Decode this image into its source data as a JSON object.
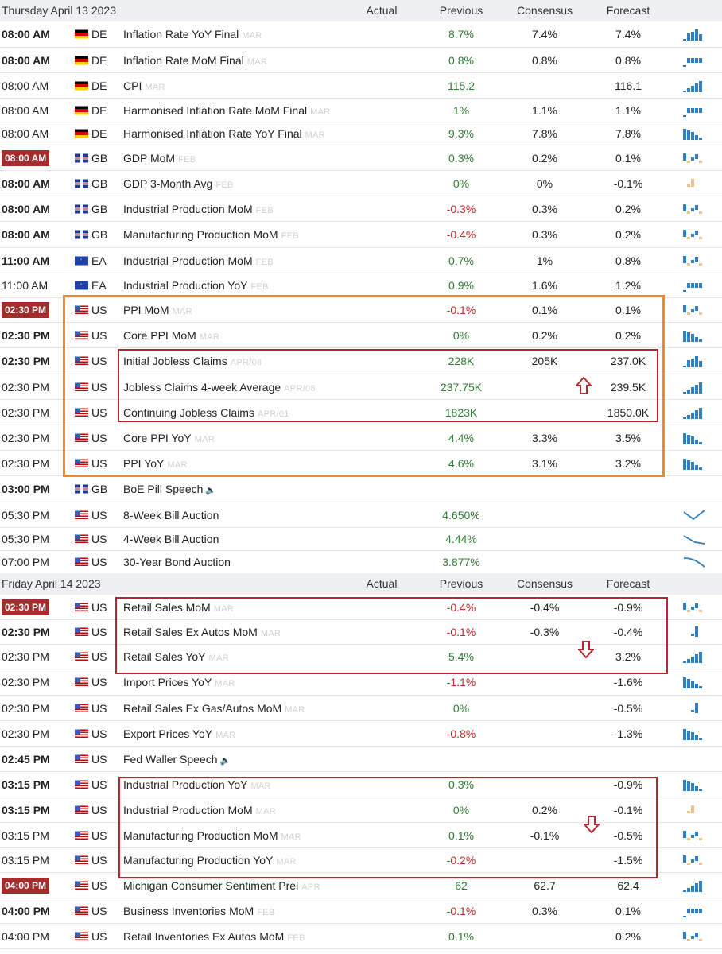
{
  "days": [
    {
      "date": "Thursday April 13 2023",
      "headers": {
        "actual": "Actual",
        "previous": "Previous",
        "consensus": "Consensus",
        "forecast": "Forecast"
      },
      "rows": [
        {
          "time": "08:00 AM",
          "style": "bold",
          "flag": "de",
          "country": "DE",
          "event": "Inflation Rate YoY Final",
          "period": "MAR",
          "actual": "",
          "previous": "8.7%",
          "prev_color": "pos",
          "consensus": "7.4%",
          "forecast": "7.4%",
          "spark": "bars-up"
        },
        {
          "time": "08:00 AM",
          "style": "bold",
          "flag": "de",
          "country": "DE",
          "event": "Inflation Rate MoM Final",
          "period": "MAR",
          "actual": "",
          "previous": "0.8%",
          "prev_color": "pos",
          "consensus": "0.8%",
          "forecast": "0.8%",
          "spark": "bars-flat"
        },
        {
          "time": "08:00 AM",
          "style": "normal",
          "flag": "de",
          "country": "DE",
          "event": "CPI",
          "period": "MAR",
          "actual": "",
          "previous": "115.2",
          "prev_color": "pos",
          "consensus": "",
          "forecast": "116.1",
          "spark": "bars-rise"
        },
        {
          "time": "08:00 AM",
          "style": "normal",
          "flag": "de",
          "country": "DE",
          "event": "Harmonised Inflation Rate MoM Final",
          "period": "MAR",
          "actual": "",
          "previous": "1%",
          "prev_color": "pos",
          "consensus": "1.1%",
          "forecast": "1.1%",
          "spark": "bars-flat"
        },
        {
          "time": "08:00 AM",
          "style": "normal",
          "flag": "de",
          "country": "DE",
          "event": "Harmonised Inflation Rate YoY Final",
          "period": "MAR",
          "actual": "",
          "previous": "9.3%",
          "prev_color": "pos",
          "consensus": "7.8%",
          "forecast": "7.8%",
          "spark": "bars-down"
        },
        {
          "time": "08:00 AM",
          "style": "badge",
          "flag": "gb",
          "country": "GB",
          "event": "GDP MoM",
          "period": "FEB",
          "actual": "",
          "previous": "0.3%",
          "prev_color": "pos",
          "consensus": "0.2%",
          "forecast": "0.1%",
          "spark": "mixed"
        },
        {
          "time": "08:00 AM",
          "style": "bold",
          "flag": "gb",
          "country": "GB",
          "event": "GDP 3-Month Avg",
          "period": "FEB",
          "actual": "",
          "previous": "0%",
          "prev_color": "pos",
          "consensus": "0%",
          "forecast": "-0.1%",
          "spark": "single"
        },
        {
          "time": "08:00 AM",
          "style": "bold",
          "flag": "gb",
          "country": "GB",
          "event": "Industrial Production MoM",
          "period": "FEB",
          "actual": "",
          "previous": "-0.3%",
          "prev_color": "neg",
          "consensus": "0.3%",
          "forecast": "0.2%",
          "spark": "mixed"
        },
        {
          "time": "08:00 AM",
          "style": "bold",
          "flag": "gb",
          "country": "GB",
          "event": "Manufacturing Production MoM",
          "period": "FEB",
          "actual": "",
          "previous": "-0.4%",
          "prev_color": "neg",
          "consensus": "0.3%",
          "forecast": "0.2%",
          "spark": "mixed"
        },
        {
          "time": "11:00 AM",
          "style": "bold",
          "flag": "ea",
          "country": "EA",
          "event": "Industrial Production MoM",
          "period": "FEB",
          "actual": "",
          "previous": "0.7%",
          "prev_color": "pos",
          "consensus": "1%",
          "forecast": "0.8%",
          "spark": "mixed"
        },
        {
          "time": "11:00 AM",
          "style": "normal",
          "flag": "ea",
          "country": "EA",
          "event": "Industrial Production YoY",
          "period": "FEB",
          "actual": "",
          "previous": "0.9%",
          "prev_color": "pos",
          "consensus": "1.6%",
          "forecast": "1.2%",
          "spark": "bars-flat"
        },
        {
          "time": "02:30 PM",
          "style": "badge",
          "flag": "us",
          "country": "US",
          "event": "PPI MoM",
          "period": "MAR",
          "actual": "",
          "previous": "-0.1%",
          "prev_color": "neg",
          "consensus": "0.1%",
          "forecast": "0.1%",
          "spark": "mixed"
        },
        {
          "time": "02:30 PM",
          "style": "bold",
          "flag": "us",
          "country": "US",
          "event": "Core PPI MoM",
          "period": "MAR",
          "actual": "",
          "previous": "0%",
          "prev_color": "pos",
          "consensus": "0.2%",
          "forecast": "0.2%",
          "spark": "bars-down"
        },
        {
          "time": "02:30 PM",
          "style": "bold",
          "flag": "us",
          "country": "US",
          "event": "Initial Jobless Claims",
          "period": "APR/08",
          "actual": "",
          "previous": "228K",
          "prev_color": "pos",
          "consensus": "205K",
          "forecast": "237.0K",
          "spark": "bars-up"
        },
        {
          "time": "02:30 PM",
          "style": "normal",
          "flag": "us",
          "country": "US",
          "event": "Jobless Claims 4-week Average",
          "period": "APR/08",
          "actual": "",
          "previous": "237.75K",
          "prev_color": "pos",
          "consensus": "",
          "forecast": "239.5K",
          "spark": "bars-rise"
        },
        {
          "time": "02:30 PM",
          "style": "normal",
          "flag": "us",
          "country": "US",
          "event": "Continuing Jobless Claims",
          "period": "APR/01",
          "actual": "",
          "previous": "1823K",
          "prev_color": "pos",
          "consensus": "",
          "forecast": "1850.0K",
          "spark": "bars-rise"
        },
        {
          "time": "02:30 PM",
          "style": "normal",
          "flag": "us",
          "country": "US",
          "event": "Core PPI YoY",
          "period": "MAR",
          "actual": "",
          "previous": "4.4%",
          "prev_color": "pos",
          "consensus": "3.3%",
          "forecast": "3.5%",
          "spark": "bars-down"
        },
        {
          "time": "02:30 PM",
          "style": "normal",
          "flag": "us",
          "country": "US",
          "event": "PPI YoY",
          "period": "MAR",
          "actual": "",
          "previous": "4.6%",
          "prev_color": "pos",
          "consensus": "3.1%",
          "forecast": "3.2%",
          "spark": "bars-down"
        },
        {
          "time": "03:00 PM",
          "style": "bold",
          "flag": "gb",
          "country": "GB",
          "event": "BoE Pill Speech",
          "period": "",
          "speaker": true,
          "actual": "",
          "previous": "",
          "prev_color": "pos",
          "consensus": "",
          "forecast": "",
          "spark": "none"
        },
        {
          "time": "05:30 PM",
          "style": "normal",
          "flag": "us",
          "country": "US",
          "event": "8-Week Bill Auction",
          "period": "",
          "actual": "",
          "previous": "4.650%",
          "prev_color": "pos",
          "consensus": "",
          "forecast": "",
          "spark": "line-v"
        },
        {
          "time": "05:30 PM",
          "style": "normal",
          "flag": "us",
          "country": "US",
          "event": "4-Week Bill Auction",
          "period": "",
          "actual": "",
          "previous": "4.44%",
          "prev_color": "pos",
          "consensus": "",
          "forecast": "",
          "spark": "line-down"
        },
        {
          "time": "07:00 PM",
          "style": "normal",
          "flag": "us",
          "country": "US",
          "event": "30-Year Bond Auction",
          "period": "",
          "actual": "",
          "previous": "3.877%",
          "prev_color": "pos",
          "consensus": "",
          "forecast": "",
          "spark": "line-curve"
        }
      ]
    },
    {
      "date": "Friday April 14 2023",
      "headers": {
        "actual": "Actual",
        "previous": "Previous",
        "consensus": "Consensus",
        "forecast": "Forecast"
      },
      "rows": [
        {
          "time": "02:30 PM",
          "style": "badge",
          "flag": "us",
          "country": "US",
          "event": "Retail Sales MoM",
          "period": "MAR",
          "actual": "",
          "previous": "-0.4%",
          "prev_color": "neg",
          "consensus": "-0.4%",
          "forecast": "-0.9%",
          "spark": "mixed"
        },
        {
          "time": "02:30 PM",
          "style": "bold",
          "flag": "us",
          "country": "US",
          "event": "Retail Sales Ex Autos MoM",
          "period": "MAR",
          "actual": "",
          "previous": "-0.1%",
          "prev_color": "neg",
          "consensus": "-0.3%",
          "forecast": "-0.4%",
          "spark": "single-up"
        },
        {
          "time": "02:30 PM",
          "style": "normal",
          "flag": "us",
          "country": "US",
          "event": "Retail Sales YoY",
          "period": "MAR",
          "actual": "",
          "previous": "5.4%",
          "prev_color": "pos",
          "consensus": "",
          "forecast": "3.2%",
          "spark": "bars-rise"
        },
        {
          "time": "02:30 PM",
          "style": "normal",
          "flag": "us",
          "country": "US",
          "event": "Import Prices YoY",
          "period": "MAR",
          "actual": "",
          "previous": "-1.1%",
          "prev_color": "neg",
          "consensus": "",
          "forecast": "-1.6%",
          "spark": "bars-down"
        },
        {
          "time": "02:30 PM",
          "style": "normal",
          "flag": "us",
          "country": "US",
          "event": "Retail Sales Ex Gas/Autos MoM",
          "period": "MAR",
          "actual": "",
          "previous": "0%",
          "prev_color": "pos",
          "consensus": "",
          "forecast": "-0.5%",
          "spark": "single-up"
        },
        {
          "time": "02:30 PM",
          "style": "normal",
          "flag": "us",
          "country": "US",
          "event": "Export Prices YoY",
          "period": "MAR",
          "actual": "",
          "previous": "-0.8%",
          "prev_color": "neg",
          "consensus": "",
          "forecast": "-1.3%",
          "spark": "bars-down"
        },
        {
          "time": "02:45 PM",
          "style": "bold",
          "flag": "us",
          "country": "US",
          "event": "Fed Waller Speech",
          "period": "",
          "speaker": true,
          "actual": "",
          "previous": "",
          "prev_color": "pos",
          "consensus": "",
          "forecast": "",
          "spark": "none"
        },
        {
          "time": "03:15 PM",
          "style": "bold",
          "flag": "us",
          "country": "US",
          "event": "Industrial Production YoY",
          "period": "MAR",
          "actual": "",
          "previous": "0.3%",
          "prev_color": "pos",
          "consensus": "",
          "forecast": "-0.9%",
          "spark": "bars-down"
        },
        {
          "time": "03:15 PM",
          "style": "bold",
          "flag": "us",
          "country": "US",
          "event": "Industrial Production MoM",
          "period": "MAR",
          "actual": "",
          "previous": "0%",
          "prev_color": "pos",
          "consensus": "0.2%",
          "forecast": "-0.1%",
          "spark": "single"
        },
        {
          "time": "03:15 PM",
          "style": "normal",
          "flag": "us",
          "country": "US",
          "event": "Manufacturing Production MoM",
          "period": "MAR",
          "actual": "",
          "previous": "0.1%",
          "prev_color": "pos",
          "consensus": "-0.1%",
          "forecast": "-0.5%",
          "spark": "mixed"
        },
        {
          "time": "03:15 PM",
          "style": "normal",
          "flag": "us",
          "country": "US",
          "event": "Manufacturing Production YoY",
          "period": "MAR",
          "actual": "",
          "previous": "-0.2%",
          "prev_color": "neg",
          "consensus": "",
          "forecast": "-1.5%",
          "spark": "mixed"
        },
        {
          "time": "04:00 PM",
          "style": "badge",
          "flag": "us",
          "country": "US",
          "event": "Michigan Consumer Sentiment Prel",
          "period": "APR",
          "actual": "",
          "previous": "62",
          "prev_color": "pos",
          "consensus": "62.7",
          "forecast": "62.4",
          "spark": "bars-rise"
        },
        {
          "time": "04:00 PM",
          "style": "bold",
          "flag": "us",
          "country": "US",
          "event": "Business Inventories MoM",
          "period": "FEB",
          "actual": "",
          "previous": "-0.1%",
          "prev_color": "neg",
          "consensus": "0.3%",
          "forecast": "0.1%",
          "spark": "bars-flat"
        },
        {
          "time": "04:00 PM",
          "style": "normal",
          "flag": "us",
          "country": "US",
          "event": "Retail Inventories Ex Autos MoM",
          "period": "FEB",
          "actual": "",
          "previous": "0.1%",
          "prev_color": "pos",
          "consensus": "",
          "forecast": "0.2%",
          "spark": "mixed"
        }
      ]
    }
  ],
  "colors": {
    "positive": "#2e7d32",
    "negative": "#c62828",
    "badge": "#a62b2b",
    "orange_box": "#ef8a2c",
    "red_box": "#b8262f",
    "spark_blue": "#2f7fc1",
    "spark_tan": "#f2c48d"
  }
}
